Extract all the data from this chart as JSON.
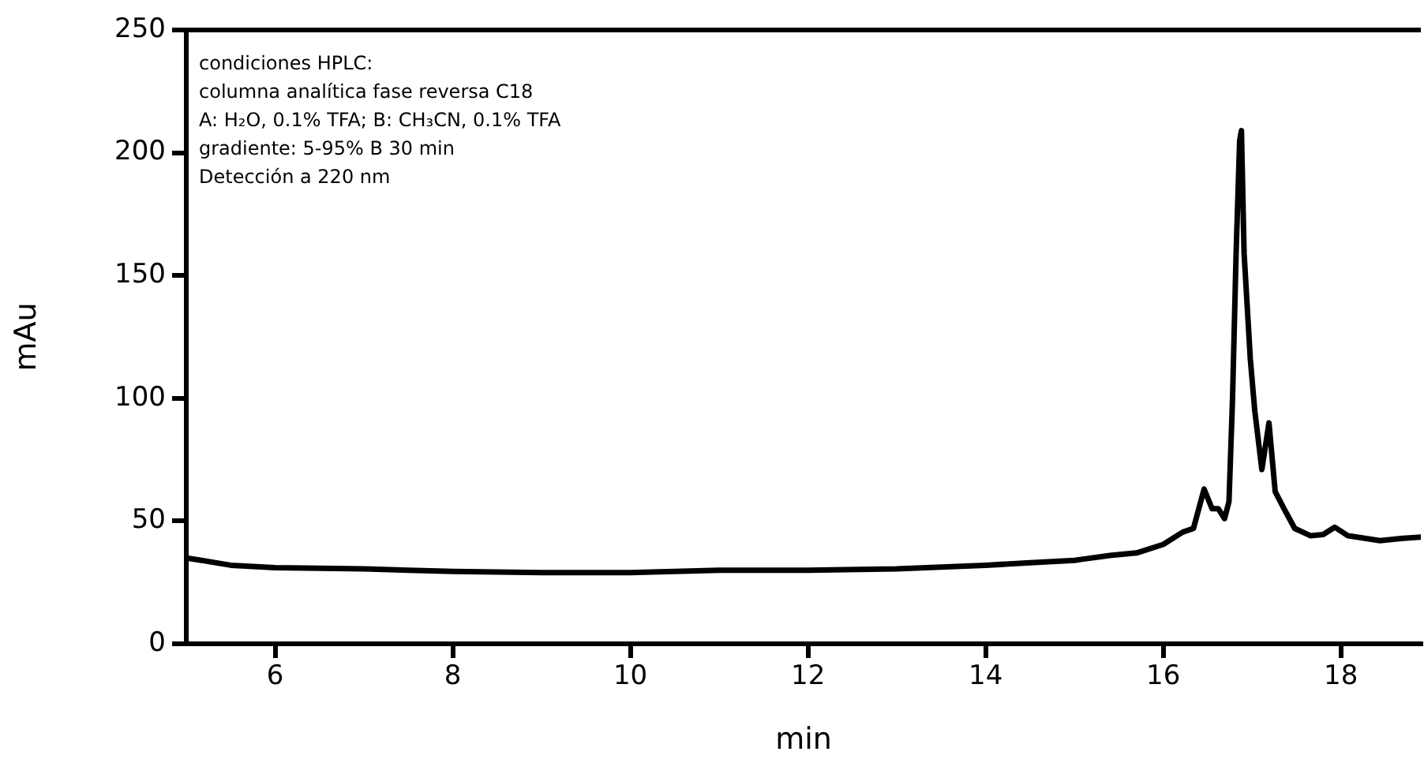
{
  "chart_data": {
    "type": "line",
    "xlabel": "min",
    "ylabel": "mAu",
    "annotations": [
      "condiciones HPLC:",
      "columna analítica fase reversa C18",
      "A: H₂O, 0.1% TFA; B: CH₃CN, 0.1% TFA",
      "gradiente: 5-95% B 30 min",
      "Detección a 220 nm"
    ],
    "x": [
      5,
      5.5,
      6,
      7,
      8,
      9,
      10,
      11,
      12,
      13,
      14,
      14.5,
      15,
      15.1,
      15.4,
      15.7,
      16,
      16.22,
      16.34,
      16.46,
      16.55,
      16.62,
      16.69,
      16.74,
      16.78,
      16.82,
      16.86,
      16.88,
      16.91,
      16.98,
      17.03,
      17.11,
      17.19,
      17.26,
      17.36,
      17.48,
      17.66,
      17.8,
      17.93,
      18.08,
      18.44,
      18.7,
      18.9
    ],
    "series": [
      {
        "color": "#000000",
        "values": [
          35,
          32,
          31,
          30.5,
          29.5,
          29,
          29,
          30,
          30,
          30.5,
          32,
          33,
          34,
          34.5,
          36,
          37,
          40.5,
          45.5,
          47,
          63,
          55,
          55,
          51,
          58,
          100,
          159,
          205,
          209,
          159,
          116,
          95,
          71,
          90,
          62,
          55,
          47,
          44,
          44.5,
          47.5,
          44,
          42,
          43,
          43.5
        ]
      }
    ],
    "xlim": [
      5,
      18.9
    ],
    "xticks": [
      6,
      8,
      10,
      12,
      14,
      16,
      18
    ],
    "ylim": [
      0,
      250
    ],
    "yticks": [
      0,
      50,
      100,
      150,
      200,
      250
    ],
    "grid": false,
    "legend": false,
    "marker": "none",
    "line_style": "solid"
  }
}
